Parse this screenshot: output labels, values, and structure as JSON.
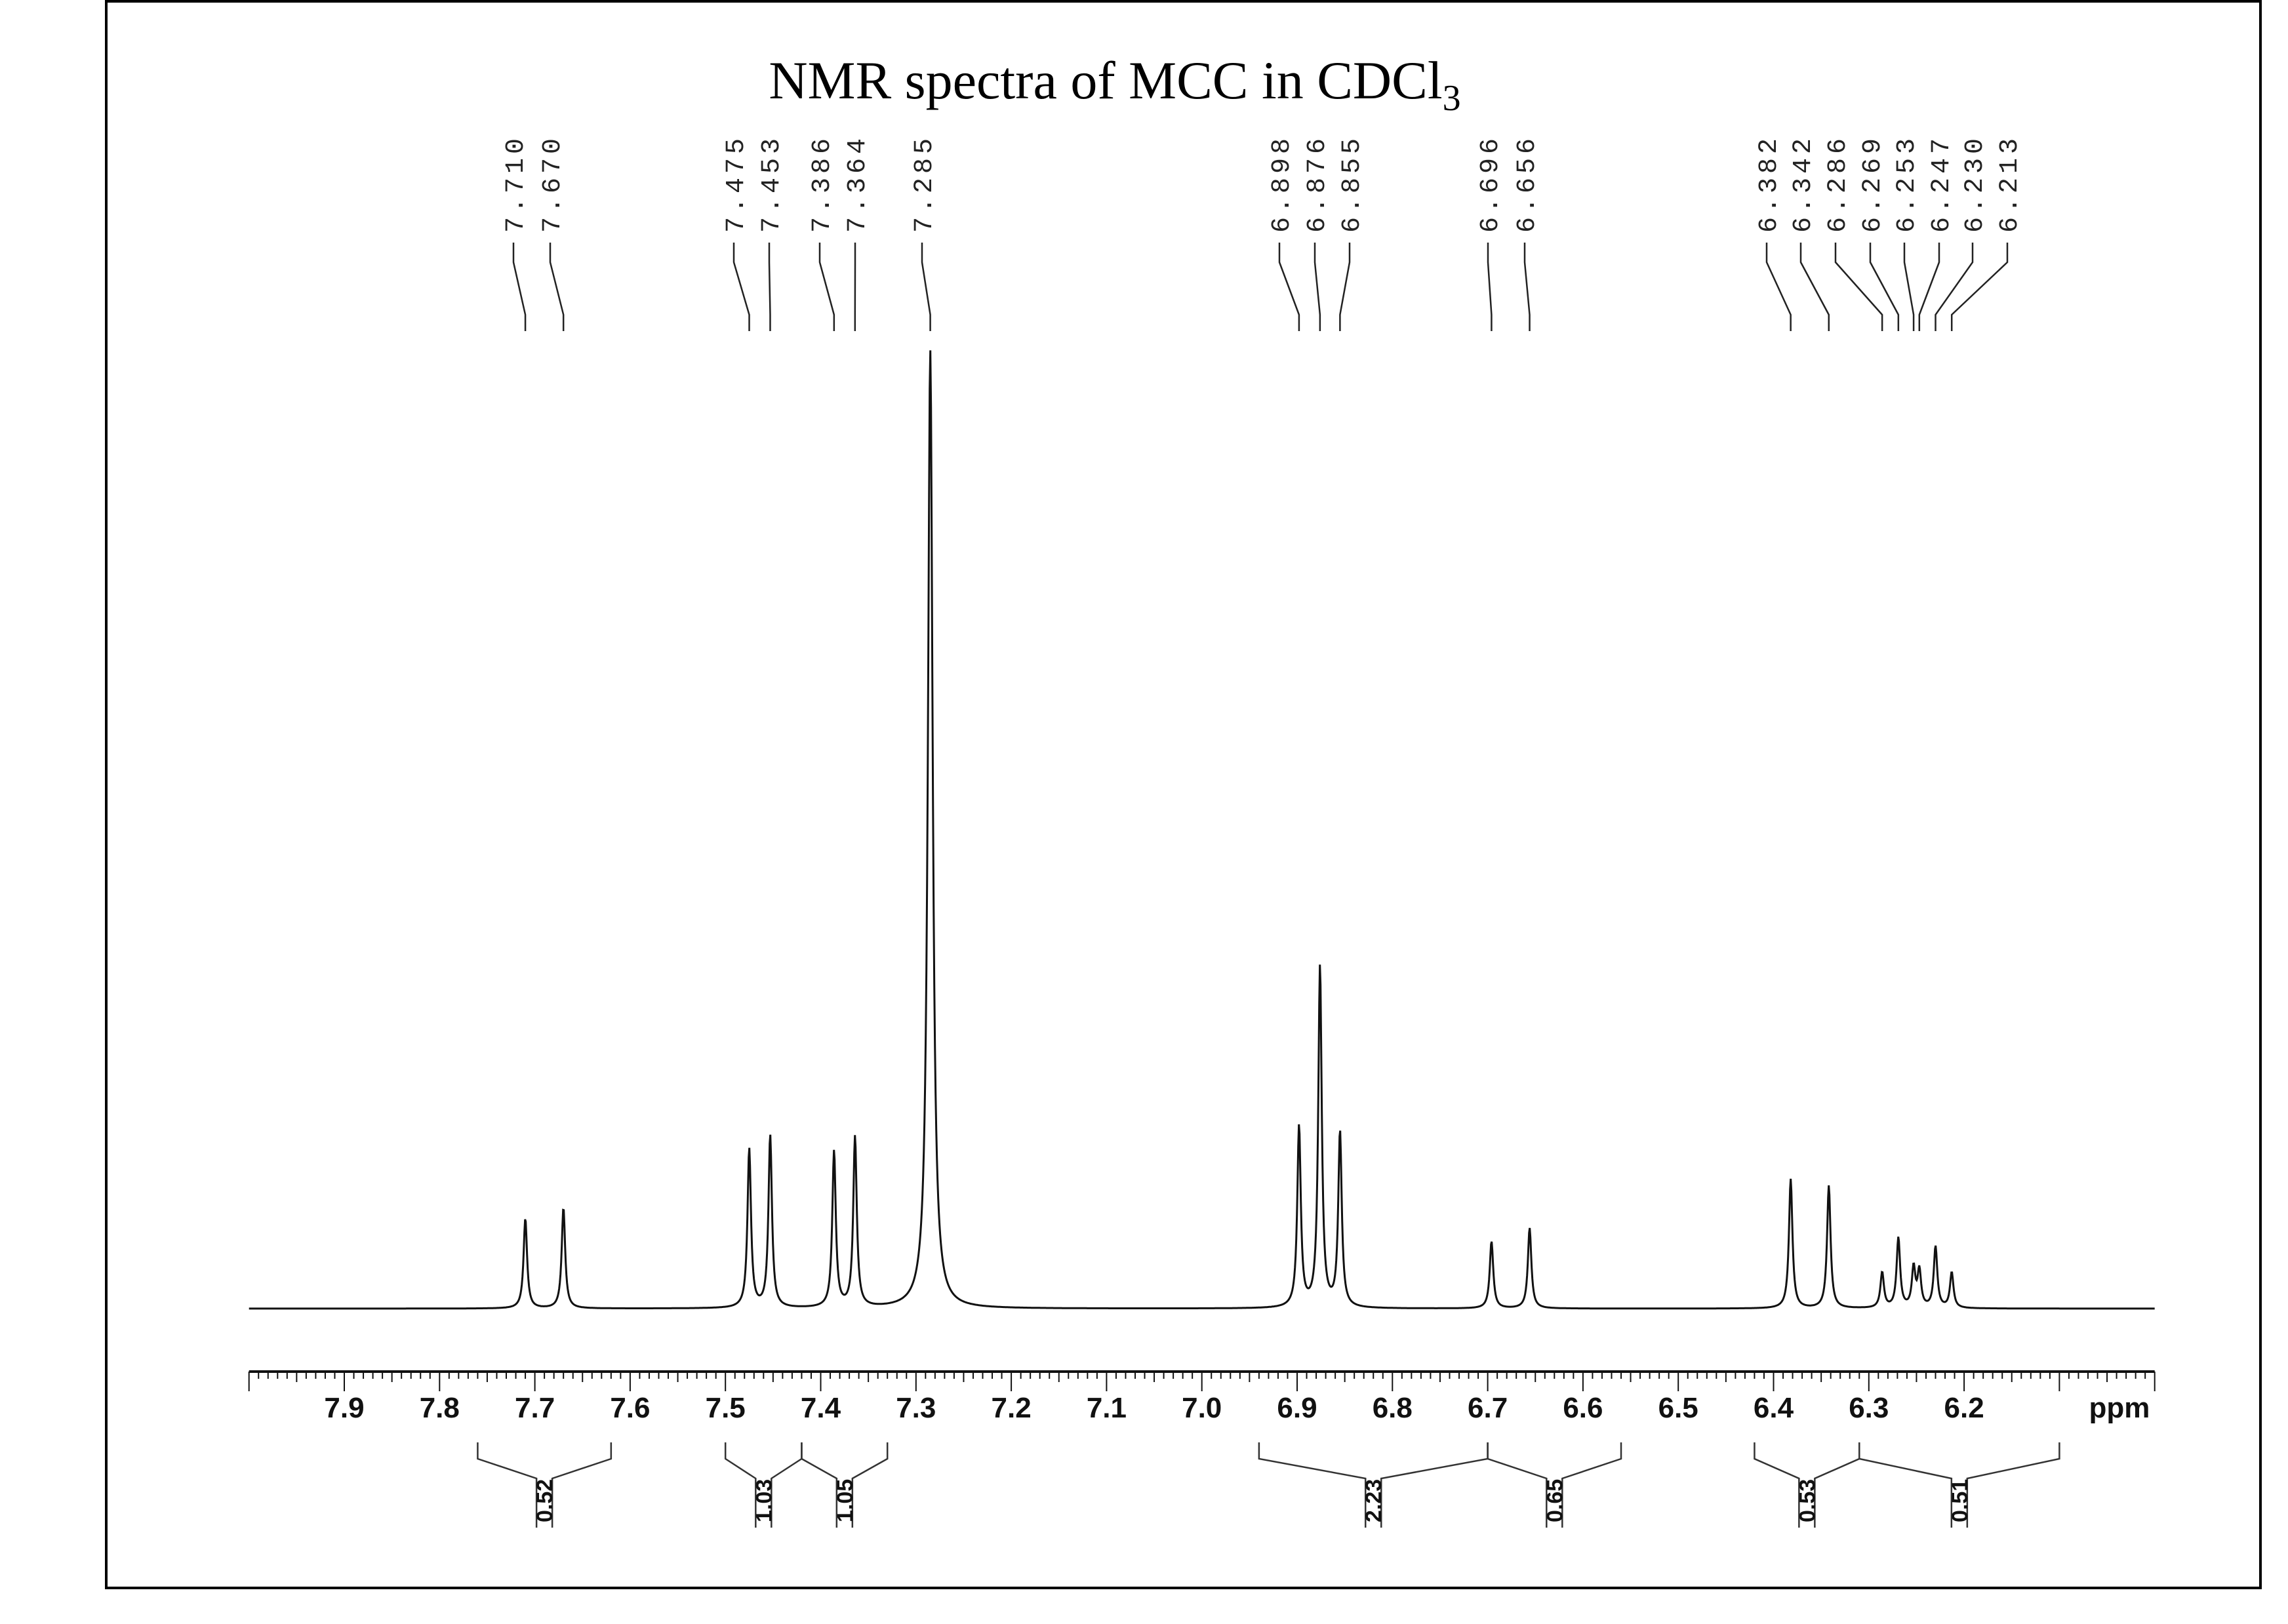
{
  "chart_data": {
    "type": "line",
    "title": "NMR spectra of MCC in CDCl",
    "title_subscript": "3",
    "xlabel": "ppm",
    "xlim": [
      8.0,
      6.0
    ],
    "x_reversed": true,
    "ticks": [
      "7.9",
      "7.8",
      "7.7",
      "7.6",
      "7.5",
      "7.4",
      "7.3",
      "7.2",
      "7.1",
      "7.0",
      "6.9",
      "6.8",
      "6.7",
      "6.6",
      "6.5",
      "6.4",
      "6.3",
      "6.2"
    ],
    "peaks": [
      {
        "ppm": 7.71,
        "label": "7.710",
        "intensity": 0.094
      },
      {
        "ppm": 7.67,
        "label": "7.670",
        "intensity": 0.105
      },
      {
        "ppm": 7.475,
        "label": "7.475",
        "intensity": 0.166
      },
      {
        "ppm": 7.453,
        "label": "7.453",
        "intensity": 0.18
      },
      {
        "ppm": 7.386,
        "label": "7.386",
        "intensity": 0.163
      },
      {
        "ppm": 7.364,
        "label": "7.364",
        "intensity": 0.178
      },
      {
        "ppm": 7.285,
        "label": "7.285",
        "intensity": 1.0
      },
      {
        "ppm": 6.898,
        "label": "6.898",
        "intensity": 0.189
      },
      {
        "ppm": 6.876,
        "label": "6.876",
        "intensity": 0.356
      },
      {
        "ppm": 6.855,
        "label": "6.855",
        "intensity": 0.183
      },
      {
        "ppm": 6.696,
        "label": "6.696",
        "intensity": 0.07
      },
      {
        "ppm": 6.656,
        "label": "6.656",
        "intensity": 0.084
      },
      {
        "ppm": 6.382,
        "label": "6.382",
        "intensity": 0.135
      },
      {
        "ppm": 6.342,
        "label": "6.342",
        "intensity": 0.128
      },
      {
        "ppm": 6.286,
        "label": "6.286",
        "intensity": 0.037
      },
      {
        "ppm": 6.269,
        "label": "6.269",
        "intensity": 0.073
      },
      {
        "ppm": 6.253,
        "label": "6.253",
        "intensity": 0.041
      },
      {
        "ppm": 6.247,
        "label": "6.247",
        "intensity": 0.038
      },
      {
        "ppm": 6.23,
        "label": "6.230",
        "intensity": 0.064
      },
      {
        "ppm": 6.213,
        "label": "6.213",
        "intensity": 0.037
      }
    ],
    "integrals": [
      {
        "from": 7.76,
        "to": 7.62,
        "value": "0.52"
      },
      {
        "from": 7.5,
        "to": 7.42,
        "value": "1.03"
      },
      {
        "from": 7.42,
        "to": 7.33,
        "value": "1.05"
      },
      {
        "from": 6.94,
        "to": 6.7,
        "value": "2.23"
      },
      {
        "from": 6.7,
        "to": 6.56,
        "value": "0.65"
      },
      {
        "from": 6.42,
        "to": 6.31,
        "value": "0.53"
      },
      {
        "from": 6.31,
        "to": 6.1,
        "value": "0.51"
      }
    ]
  }
}
